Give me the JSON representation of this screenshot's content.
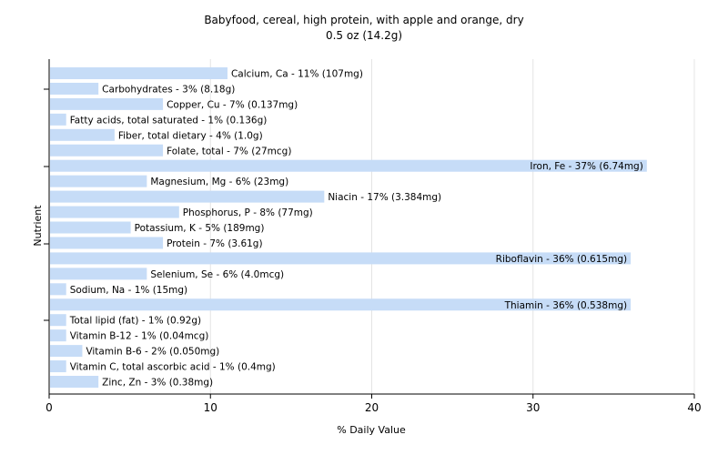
{
  "chart_data": {
    "type": "bar",
    "orientation": "horizontal",
    "title": "Babyfood, cereal, high protein, with apple and orange, dry",
    "subtitle": "0.5 oz (14.2g)",
    "xlabel": "% Daily Value",
    "ylabel": "Nutrient",
    "xlim": [
      0,
      40
    ],
    "xticks": [
      0,
      10,
      20,
      30,
      40
    ],
    "grid": "vertical",
    "bar_color": "#c6dcf7",
    "categories": [
      "Calcium, Ca",
      "Carbohydrates",
      "Copper, Cu",
      "Fatty acids, total saturated",
      "Fiber, total dietary",
      "Folate, total",
      "Iron, Fe",
      "Magnesium, Mg",
      "Niacin",
      "Phosphorus, P",
      "Potassium, K",
      "Protein",
      "Riboflavin",
      "Selenium, Se",
      "Sodium, Na",
      "Thiamin",
      "Total lipid (fat)",
      "Vitamin B-12",
      "Vitamin B-6",
      "Vitamin C, total ascorbic acid",
      "Zinc, Zn"
    ],
    "values": [
      11,
      3,
      7,
      1,
      4,
      7,
      37,
      6,
      17,
      8,
      5,
      7,
      36,
      6,
      1,
      36,
      1,
      1,
      2,
      1,
      3
    ],
    "labels": [
      "Calcium, Ca - 11% (107mg)",
      "Carbohydrates - 3% (8.18g)",
      "Copper, Cu - 7% (0.137mg)",
      "Fatty acids, total saturated - 1% (0.136g)",
      "Fiber, total dietary - 4% (1.0g)",
      "Folate, total - 7% (27mcg)",
      "Iron, Fe - 37% (6.74mg)",
      "Magnesium, Mg - 6% (23mg)",
      "Niacin - 17% (3.384mg)",
      "Phosphorus, P - 8% (77mg)",
      "Potassium, K - 5% (189mg)",
      "Protein - 7% (3.61g)",
      "Riboflavin - 36% (0.615mg)",
      "Selenium, Se - 6% (4.0mcg)",
      "Sodium, Na - 1% (15mg)",
      "Thiamin - 36% (0.538mg)",
      "Total lipid (fat) - 1% (0.92g)",
      "Vitamin B-12 - 1% (0.04mcg)",
      "Vitamin B-6 - 2% (0.050mg)",
      "Vitamin C, total ascorbic acid - 1% (0.4mg)",
      "Zinc, Zn - 3% (0.38mg)"
    ]
  }
}
